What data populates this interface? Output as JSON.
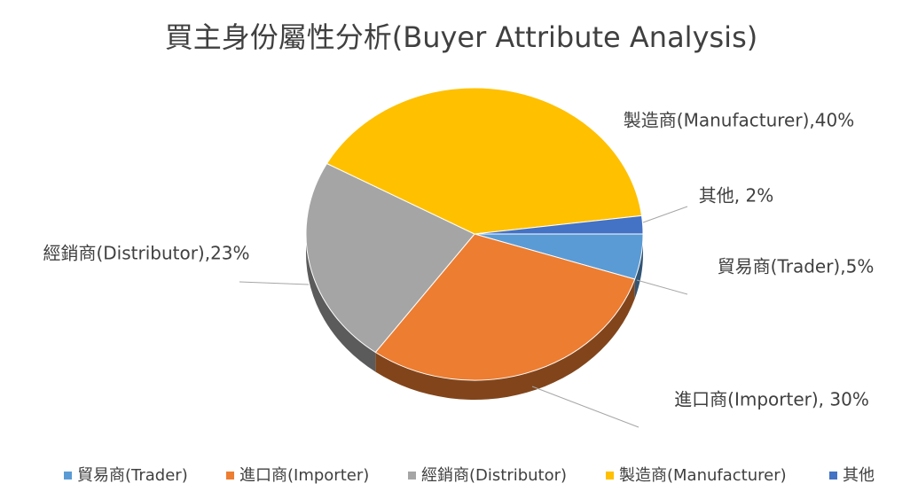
{
  "chart_data": {
    "type": "pie",
    "title": "買主身份屬性分析(Buyer Attribute Analysis)",
    "categories": [
      "貿易商(Trader)",
      "進口商(Importer)",
      "經銷商(Distributor)",
      "製造商(Manufacturer)",
      "其他"
    ],
    "values": [
      5,
      30,
      23,
      40,
      2
    ],
    "value_labels": [
      "貿易商(Trader),5%",
      "進口商(Importer), 30%",
      "經銷商(Distributor),23%",
      "製造商(Manufacturer),40%",
      "其他, 2%"
    ],
    "colors": [
      "#5b9bd5",
      "#ed7d31",
      "#a5a5a5",
      "#ffc000",
      "#4472c4"
    ],
    "legend": "bottom"
  }
}
